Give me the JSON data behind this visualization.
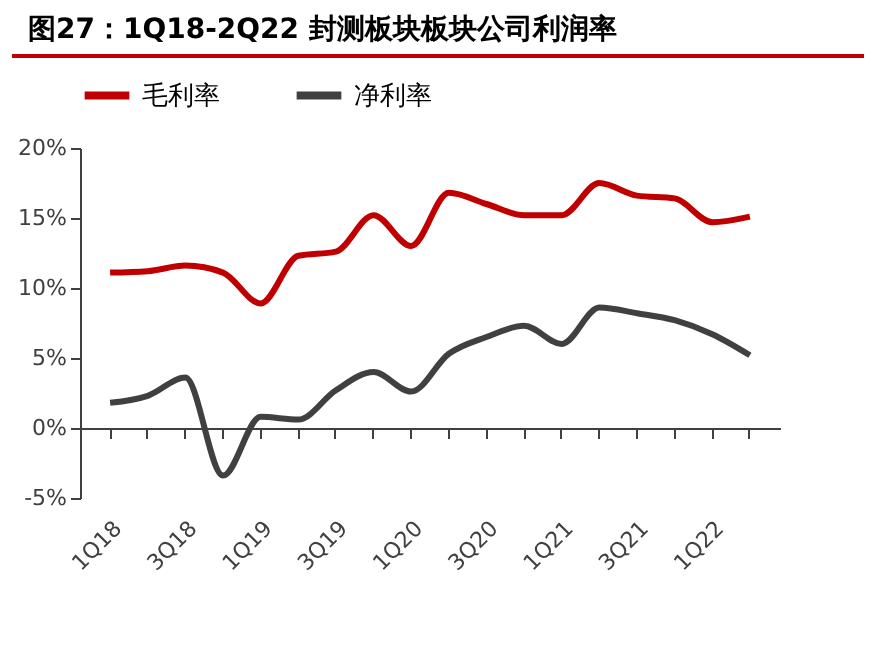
{
  "chart_data": {
    "type": "line",
    "title": "图27：1Q18-2Q22 封测板块板块公司利润率",
    "categories": [
      "1Q18",
      null,
      "3Q18",
      null,
      "1Q19",
      null,
      "3Q19",
      null,
      "1Q20",
      null,
      "3Q20",
      null,
      "1Q21",
      null,
      "3Q21",
      null,
      "1Q22",
      null
    ],
    "series": [
      {
        "name": "毛利率",
        "color": "#c00000",
        "values": [
          11.1,
          11.2,
          11.6,
          11.1,
          8.9,
          12.3,
          12.6,
          15.2,
          13.0,
          16.8,
          16.0,
          15.2,
          15.2,
          17.5,
          16.6,
          16.4,
          14.7,
          15.1
        ]
      },
      {
        "name": "净利率",
        "color": "#404040",
        "values": [
          1.8,
          2.3,
          3.6,
          -3.4,
          0.8,
          0.6,
          2.7,
          4.0,
          2.6,
          5.3,
          6.5,
          7.3,
          6.0,
          8.6,
          8.2,
          7.7,
          6.7,
          5.2
        ]
      }
    ],
    "ylim": [
      -5,
      20
    ],
    "yticks": [
      {
        "value": -5,
        "label": "-5%"
      },
      {
        "value": 0,
        "label": "0%"
      },
      {
        "value": 5,
        "label": "5%"
      },
      {
        "value": 10,
        "label": "10%"
      },
      {
        "value": 15,
        "label": "15%"
      },
      {
        "value": 20,
        "label": "20%"
      }
    ],
    "legend": "top"
  }
}
